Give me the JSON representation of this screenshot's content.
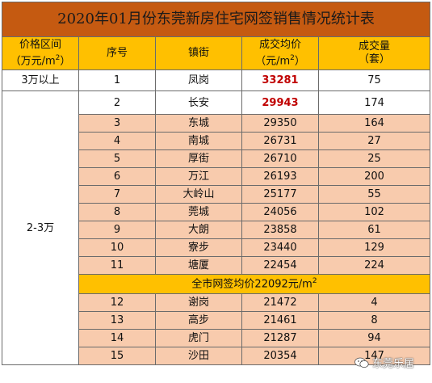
{
  "table": {
    "title": "2020年01月份东莞新房住宅网签销售情况统计表",
    "headers": {
      "price_range_line1": "价格区间",
      "price_range_line2": "（万元/m",
      "price_range_sup": "2",
      "price_range_end": "）",
      "seq": "序号",
      "town": "镇街",
      "avg_price_line1": "成交均价",
      "avg_price_line2": "（元/m",
      "avg_price_sup": "2",
      "avg_price_end": "）",
      "volume_line1": "成交量",
      "volume_line2": "（套）"
    },
    "group_top": {
      "label": "3万以上"
    },
    "group_mid": {
      "label": "2-3万"
    },
    "rows_top": [
      {
        "seq": "1",
        "town": "凤岗",
        "price": "33281",
        "volume": "75"
      }
    ],
    "rows_mid_a": [
      {
        "seq": "2",
        "town": "长安",
        "price": "29943",
        "volume": "174"
      },
      {
        "seq": "3",
        "town": "东城",
        "price": "29350",
        "volume": "164"
      },
      {
        "seq": "4",
        "town": "南城",
        "price": "26731",
        "volume": "27"
      },
      {
        "seq": "5",
        "town": "厚街",
        "price": "26710",
        "volume": "25"
      },
      {
        "seq": "6",
        "town": "万江",
        "price": "26193",
        "volume": "200"
      },
      {
        "seq": "7",
        "town": "大岭山",
        "price": "25177",
        "volume": "55"
      },
      {
        "seq": "8",
        "town": "莞城",
        "price": "24056",
        "volume": "102"
      },
      {
        "seq": "9",
        "town": "大朗",
        "price": "23858",
        "volume": "61"
      },
      {
        "seq": "10",
        "town": "寮步",
        "price": "23440",
        "volume": "129"
      },
      {
        "seq": "11",
        "town": "塘厦",
        "price": "22454",
        "volume": "224"
      }
    ],
    "city_avg": {
      "text": "全市网签均价22092元/m",
      "sup": "2"
    },
    "rows_mid_b": [
      {
        "seq": "12",
        "town": "谢岗",
        "price": "21472",
        "volume": "4"
      },
      {
        "seq": "13",
        "town": "高步",
        "price": "21461",
        "volume": "8"
      },
      {
        "seq": "14",
        "town": "虎门",
        "price": "21287",
        "volume": "94"
      },
      {
        "seq": "15",
        "town": "沙田",
        "price": "20354",
        "volume": "147"
      }
    ]
  },
  "watermark": {
    "text": "东莞乐居",
    "icon": "wechat-icon"
  },
  "colors": {
    "title_bg": "#c55a11",
    "header_bg": "#ffc000",
    "white_row": "#ffffff",
    "peach_row": "#f8cbad",
    "avg_bg": "#ffc000",
    "highlight_price": "#c00000"
  }
}
